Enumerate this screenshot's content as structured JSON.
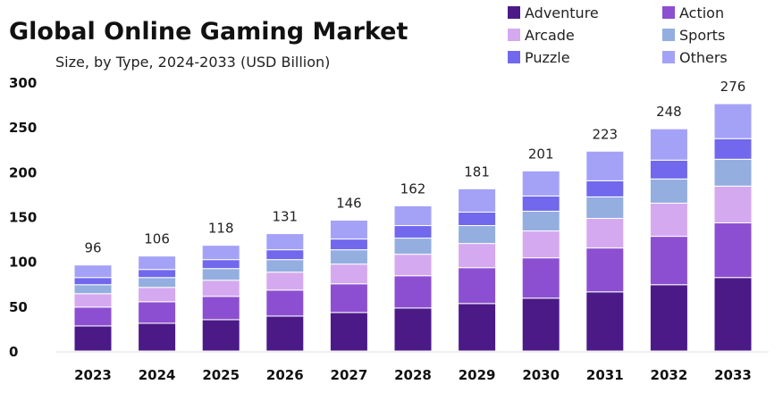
{
  "chart_data": {
    "type": "bar",
    "stacked": true,
    "title": "Global Online Gaming Market",
    "subtitle": "Size, by Type, 2024-2033 (USD Billion)",
    "categories": [
      "2023",
      "2024",
      "2025",
      "2026",
      "2027",
      "2028",
      "2029",
      "2030",
      "2031",
      "2032",
      "2033"
    ],
    "totals": [
      "96",
      "106",
      "118",
      "131",
      "146",
      "162",
      "181",
      "201",
      "223",
      "248",
      "276"
    ],
    "ylim": [
      0,
      300
    ],
    "yticks": [
      "300",
      "250",
      "200",
      "150",
      "100",
      "50",
      "0"
    ],
    "grid": false,
    "legend_position": "top-right",
    "series": [
      {
        "name": "Adventure",
        "color": "#4b1a87",
        "values": [
          28,
          31,
          35,
          39,
          43,
          48,
          53,
          59,
          66,
          74,
          82
        ]
      },
      {
        "name": "Action",
        "color": "#8c4fd1",
        "values": [
          21,
          24,
          26,
          29,
          32,
          36,
          40,
          45,
          49,
          54,
          61
        ]
      },
      {
        "name": "Arcade",
        "color": "#d5a9f0",
        "values": [
          15,
          16,
          18,
          20,
          22,
          24,
          27,
          30,
          33,
          37,
          41
        ]
      },
      {
        "name": "Sports",
        "color": "#94aee0",
        "values": [
          10,
          11,
          13,
          14,
          16,
          18,
          20,
          22,
          24,
          27,
          30
        ]
      },
      {
        "name": "Puzzle",
        "color": "#7168ee",
        "values": [
          8,
          9,
          10,
          11,
          12,
          14,
          15,
          17,
          18,
          21,
          23
        ]
      },
      {
        "name": "Others",
        "color": "#a4a2f7",
        "values": [
          14,
          15,
          16,
          18,
          21,
          22,
          26,
          28,
          33,
          35,
          39
        ]
      }
    ]
  }
}
